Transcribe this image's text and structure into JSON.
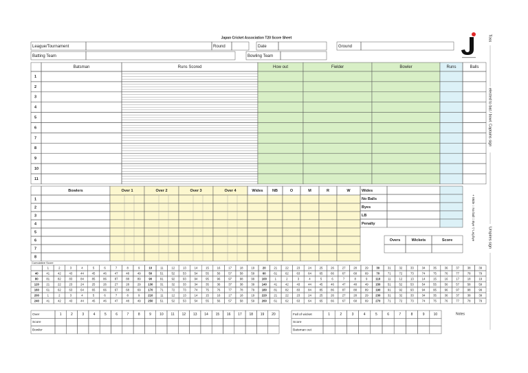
{
  "header": {
    "title": "Japan Cricket Association T20 Score Sheet",
    "league_label": "League/Tournament",
    "round_label": "Round",
    "date_label": "Date",
    "ground_label": "Ground",
    "batting_team_label": "Batting Team",
    "bowling_team_label": "Bowling Team"
  },
  "side_notes": {
    "toss": "Toss",
    "captains": "elected to bat / bowl. Captains sign",
    "umpires": "Umpires sign",
    "legend": "+ Wide ○ No ball □ Bye ▽ Leg bye"
  },
  "batting": {
    "columns": [
      "Batsman",
      "Runs Scored",
      "How out",
      "Fielder",
      "Bowler",
      "Runs",
      "Balls"
    ],
    "rows": [
      1,
      2,
      3,
      4,
      5,
      6,
      7,
      8,
      9,
      10,
      11
    ]
  },
  "bowling": {
    "columns": [
      "Bowlers",
      "Over 1",
      "Over 2",
      "Over 3",
      "Over 4",
      "Wides",
      "NB",
      "O",
      "M",
      "R",
      "W"
    ],
    "rows": [
      1,
      2,
      3,
      4,
      5,
      6,
      7,
      8
    ]
  },
  "extras": [
    "Wides",
    "No Balls",
    "Byes",
    "LB",
    "Penalty"
  ],
  "totals": [
    "Overs",
    "Wickets",
    "Score"
  ],
  "cumulative": {
    "label": "Cumulative Score",
    "rows": [
      [
        null,
        1,
        2,
        3,
        4,
        5,
        6,
        7,
        8,
        9,
        10,
        11,
        12,
        13,
        14,
        15,
        16,
        17,
        18,
        19,
        20,
        21,
        22,
        23,
        24,
        25,
        26,
        27,
        28,
        29,
        30,
        31,
        32,
        33,
        34,
        35,
        36,
        37,
        38,
        39
      ],
      [
        40,
        41,
        42,
        43,
        44,
        45,
        46,
        47,
        48,
        49,
        50,
        51,
        52,
        53,
        54,
        55,
        56,
        57,
        58,
        59,
        60,
        61,
        62,
        63,
        64,
        65,
        66,
        67,
        68,
        69,
        70,
        71,
        72,
        73,
        74,
        75,
        76,
        77,
        78,
        79
      ],
      [
        80,
        81,
        82,
        83,
        84,
        85,
        86,
        87,
        88,
        89,
        90,
        91,
        92,
        93,
        94,
        95,
        96,
        97,
        98,
        99,
        100,
        1,
        2,
        3,
        4,
        5,
        6,
        7,
        8,
        9,
        110,
        11,
        12,
        13,
        14,
        15,
        16,
        17,
        18,
        19
      ],
      [
        120,
        21,
        22,
        23,
        24,
        25,
        26,
        27,
        28,
        29,
        130,
        31,
        32,
        33,
        34,
        35,
        36,
        37,
        38,
        39,
        140,
        41,
        42,
        43,
        44,
        45,
        46,
        47,
        48,
        49,
        150,
        51,
        52,
        53,
        54,
        55,
        56,
        57,
        58,
        59
      ],
      [
        160,
        61,
        62,
        63,
        64,
        65,
        66,
        67,
        68,
        69,
        170,
        71,
        72,
        73,
        74,
        75,
        76,
        77,
        78,
        79,
        180,
        81,
        82,
        83,
        84,
        85,
        86,
        87,
        88,
        89,
        190,
        91,
        92,
        93,
        94,
        95,
        96,
        97,
        98,
        99
      ],
      [
        200,
        1,
        2,
        3,
        4,
        5,
        6,
        7,
        8,
        9,
        210,
        11,
        12,
        13,
        14,
        15,
        16,
        17,
        18,
        19,
        220,
        21,
        22,
        23,
        24,
        25,
        26,
        27,
        28,
        29,
        230,
        31,
        32,
        33,
        34,
        35,
        36,
        37,
        38,
        39
      ],
      [
        240,
        41,
        42,
        43,
        44,
        45,
        46,
        47,
        48,
        49,
        250,
        51,
        52,
        53,
        54,
        55,
        56,
        57,
        58,
        59,
        260,
        61,
        62,
        63,
        64,
        65,
        66,
        67,
        68,
        69,
        270,
        71,
        72,
        73,
        74,
        75,
        76,
        77,
        78,
        79
      ]
    ]
  },
  "overs_table": {
    "labels": [
      "Over",
      "Score",
      "Bowler"
    ],
    "numbers": [
      1,
      2,
      3,
      4,
      5,
      6,
      7,
      8,
      9,
      10,
      11,
      12,
      13,
      14,
      15,
      16,
      17,
      18,
      19,
      20
    ]
  },
  "fall_table": {
    "labels": [
      "Fall of wicket",
      "Score",
      "Batsman out"
    ],
    "numbers": [
      1,
      2,
      3,
      4,
      5,
      6,
      7,
      8,
      9,
      10
    ]
  },
  "notes": "Notes"
}
